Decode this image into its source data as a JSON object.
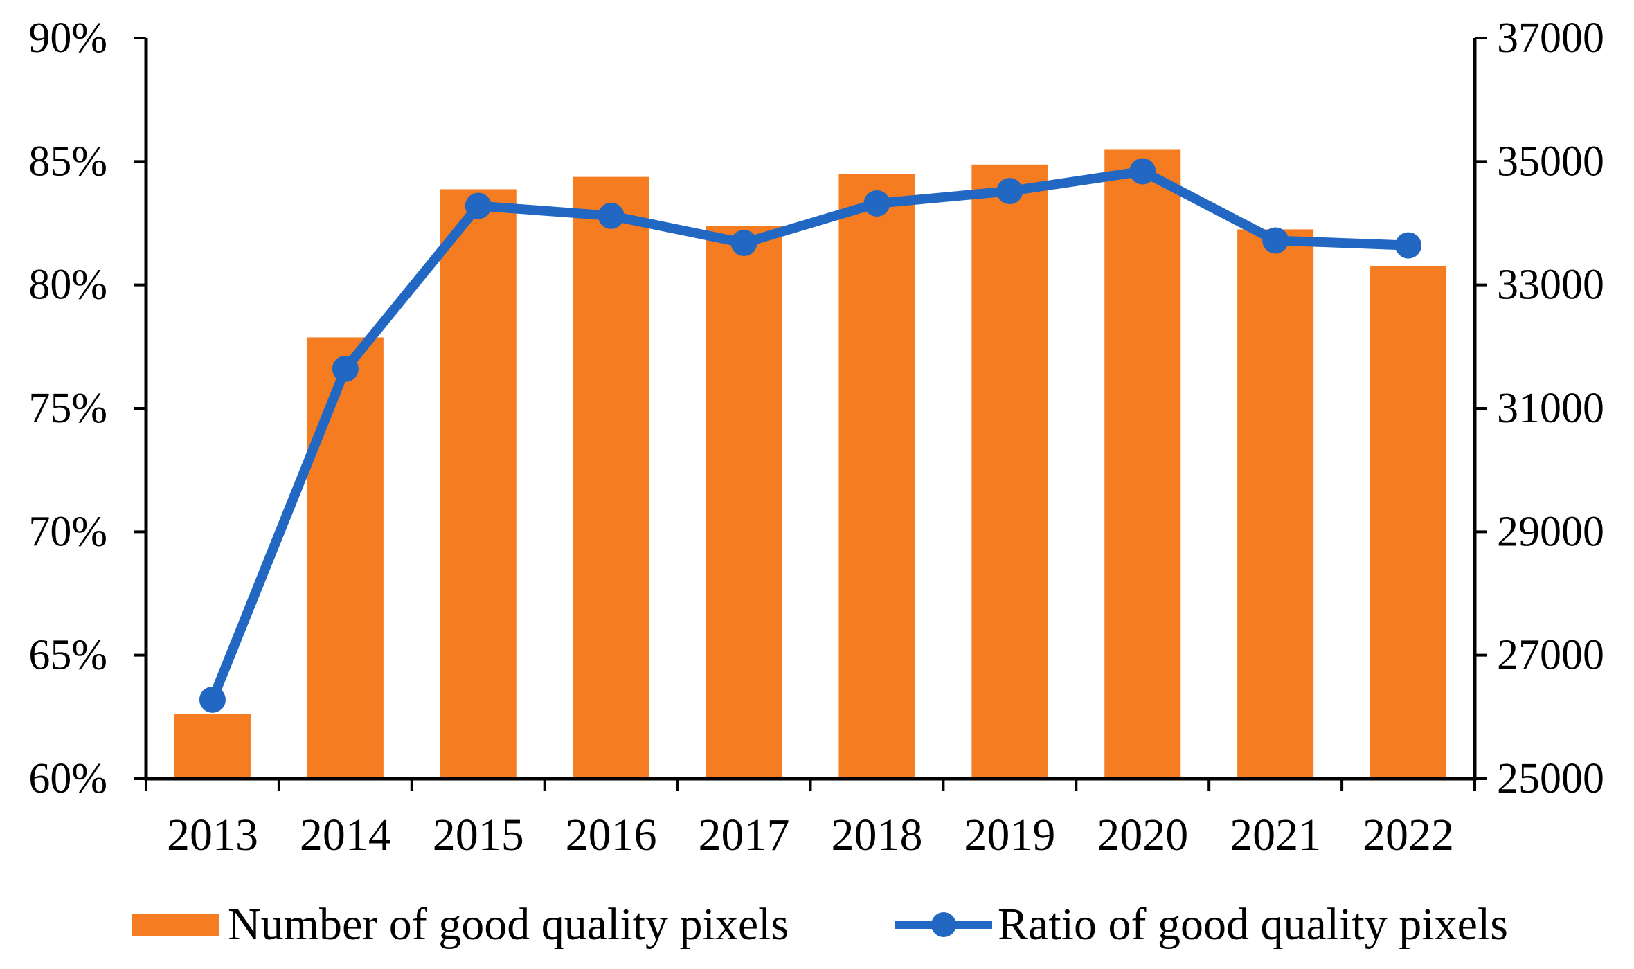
{
  "chart_data": {
    "type": "bar",
    "subtype": "combo-bar-line",
    "categories": [
      "2013",
      "2014",
      "2015",
      "2016",
      "2017",
      "2018",
      "2019",
      "2020",
      "2021",
      "2022"
    ],
    "series": [
      {
        "name": "Number of good quality pixels",
        "type": "bar",
        "axis": "right",
        "color": "#F57C20",
        "values": [
          26050,
          32150,
          34550,
          34750,
          33950,
          34800,
          34950,
          35200,
          33900,
          33300
        ]
      },
      {
        "name": "Ratio of good quality pixels",
        "type": "line",
        "axis": "left",
        "color": "#2268C3",
        "values": [
          63.2,
          76.6,
          83.2,
          82.8,
          81.7,
          83.3,
          83.8,
          84.6,
          81.8,
          81.6
        ],
        "unit": "%"
      }
    ],
    "left_axis": {
      "min": 60,
      "max": 90,
      "step": 5,
      "unit": "%",
      "tick_labels": [
        "90%",
        "85%",
        "80%",
        "75%",
        "70%",
        "65%",
        "60%"
      ]
    },
    "right_axis": {
      "min": 25000,
      "max": 37000,
      "step": 2000,
      "tick_labels": [
        "37000",
        "35000",
        "33000",
        "31000",
        "29000",
        "27000",
        "25000"
      ]
    },
    "title": "",
    "xlabel": "",
    "ylabel_left": "",
    "ylabel_right": "",
    "grid": false,
    "legend_position": "bottom"
  },
  "colors": {
    "bar": "#F57C20",
    "line": "#2268C3",
    "axis": "#000000",
    "background": "#FFFFFF"
  }
}
